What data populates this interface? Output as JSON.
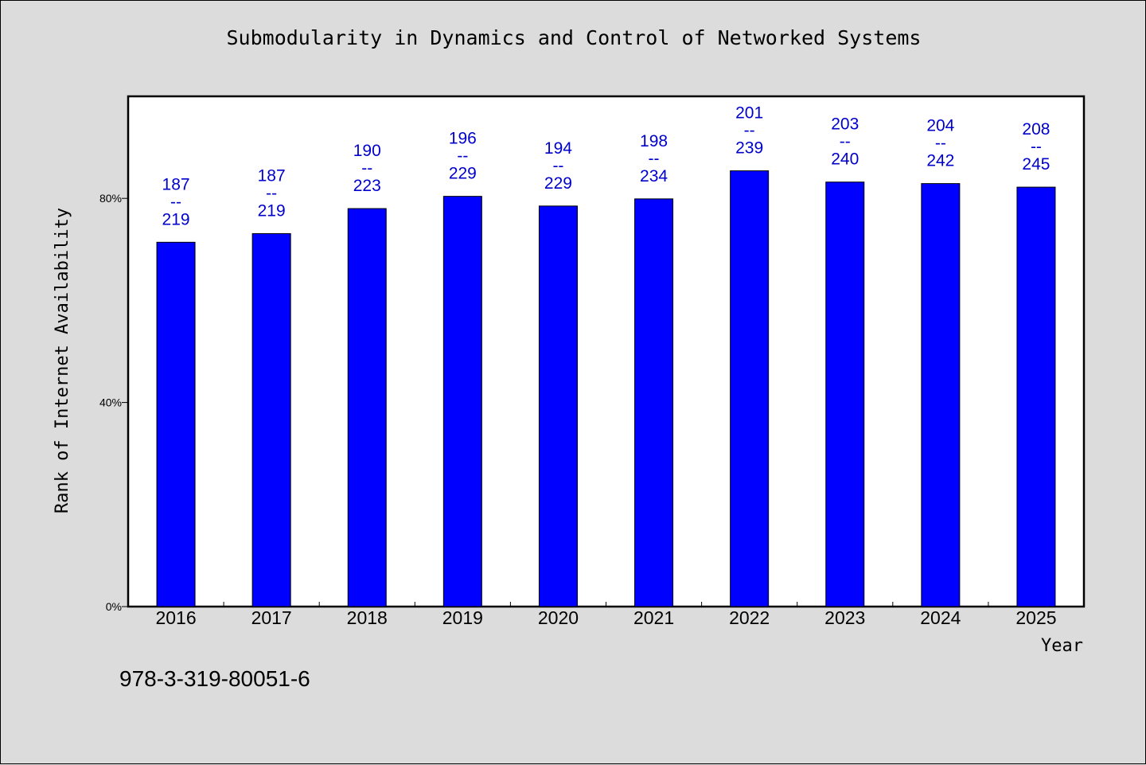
{
  "title": "Submodularity in Dynamics and Control of Networked Systems",
  "isbn": "978-3-319-80051-6",
  "colors": {
    "bar": "#0000ff",
    "label": "#0000cc",
    "plot_bg": "#ffffff",
    "page_bg": "#dcdcdc"
  },
  "chart_data": {
    "type": "bar",
    "title": "Submodularity in Dynamics and Control of Networked Systems",
    "xlabel": "Year",
    "ylabel": "Rank of Internet Availability",
    "categories": [
      "2016",
      "2017",
      "2018",
      "2019",
      "2020",
      "2021",
      "2022",
      "2023",
      "2024",
      "2025"
    ],
    "rank": [
      187,
      187,
      190,
      196,
      194,
      198,
      201,
      203,
      204,
      208
    ],
    "total": [
      219,
      219,
      223,
      229,
      229,
      234,
      239,
      240,
      242,
      245
    ],
    "values": [
      0.714,
      0.731,
      0.78,
      0.804,
      0.785,
      0.799,
      0.854,
      0.832,
      0.829,
      0.822
    ],
    "data_labels": [
      "187\n--\n219",
      "187\n--\n219",
      "190\n--\n223",
      "196\n--\n229",
      "194\n--\n229",
      "198\n--\n234",
      "201\n--\n239",
      "203\n--\n240",
      "204\n--\n242",
      "208\n--\n245"
    ],
    "yticks": [
      "0%",
      "40%",
      "80%"
    ],
    "ytick_values": [
      0,
      0.4,
      0.8
    ],
    "ylim": [
      0,
      1.0
    ],
    "grid": false,
    "legend": "none"
  }
}
